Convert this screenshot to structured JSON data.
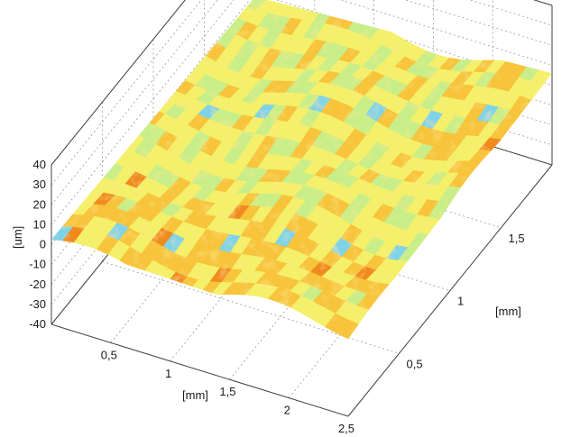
{
  "chart_data": {
    "type": "surface",
    "title": "",
    "xlabel": "[mm]",
    "ylabel": "[mm]",
    "zlabel": "[um]",
    "xlim": [
      0,
      2.5
    ],
    "ylim": [
      0,
      2
    ],
    "zlim": [
      -40,
      40
    ],
    "x_ticks": [
      "0,5",
      "1",
      "1,5",
      "2",
      "2,5"
    ],
    "y_ticks": [
      "0,5",
      "1",
      "1,5"
    ],
    "z_ticks": [
      "40",
      "30",
      "20",
      "10",
      "0",
      "-10",
      "-20",
      "-30",
      "-40"
    ],
    "grid": true,
    "colormap": [
      "#7fd3e8",
      "#c8ee8a",
      "#f4f06a",
      "#f7c43a",
      "#f08a1e"
    ],
    "surface_z_range": [
      -8,
      12
    ]
  }
}
